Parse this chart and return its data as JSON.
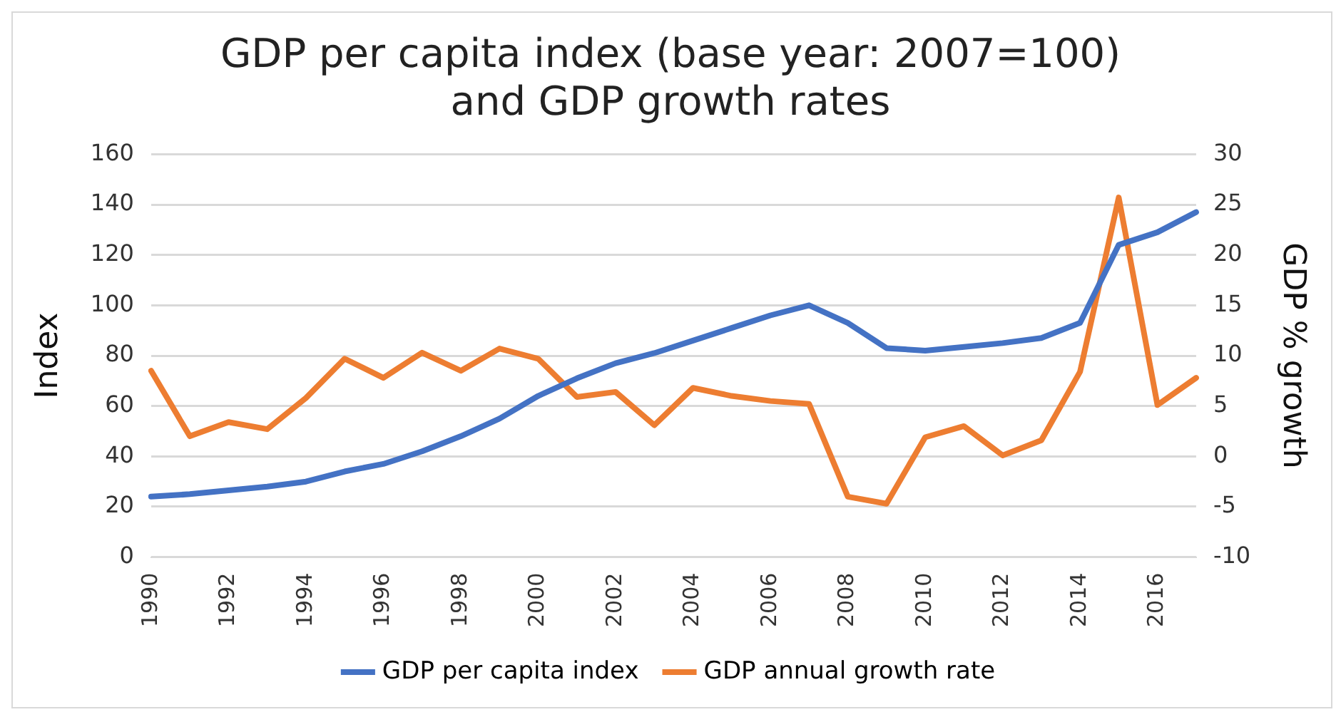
{
  "chart_data": {
    "type": "line",
    "title": "GDP per capita index (base year: 2007=100)\nand GDP growth rates",
    "ylabel": "Index",
    "y2label": "GDP % growth",
    "categories": [
      "1990",
      null,
      "1992",
      null,
      "1994",
      null,
      "1996",
      null,
      "1998",
      null,
      "2000",
      null,
      "2002",
      null,
      "2004",
      null,
      "2006",
      null,
      "2008",
      null,
      "2010",
      null,
      "2012",
      null,
      "2014",
      null,
      "2016",
      null
    ],
    "series": [
      {
        "name": "GDP per capita index",
        "color": "#4472c4",
        "values": [
          24,
          25,
          26.5,
          28,
          30,
          34,
          37,
          42,
          48,
          55,
          64,
          71,
          77,
          81,
          86,
          91,
          96,
          100,
          93,
          83,
          82,
          83.5,
          85,
          87,
          93,
          124,
          129,
          137
        ]
      },
      {
        "name": "GDP annual growth rate",
        "color": "#ed7d31",
        "axis": "y2",
        "values": [
          8.5,
          2.0,
          3.4,
          2.7,
          5.8,
          9.7,
          7.8,
          10.3,
          8.5,
          10.7,
          9.7,
          5.9,
          6.4,
          3.1,
          6.8,
          6.0,
          5.5,
          5.2,
          -4.0,
          -4.7,
          1.9,
          3.0,
          0.1,
          1.6,
          8.4,
          25.7,
          5.1,
          7.8
        ]
      }
    ],
    "ylim": [
      0,
      160
    ],
    "yticks": [
      0,
      20,
      40,
      60,
      80,
      100,
      120,
      140,
      160
    ],
    "y2lim": [
      -10,
      30
    ],
    "y2ticks": [
      -10,
      -5,
      0,
      5,
      10,
      15,
      20,
      25,
      30
    ],
    "grid": "y",
    "legend": "bottom",
    "marker": "none",
    "line_style": "solid"
  }
}
